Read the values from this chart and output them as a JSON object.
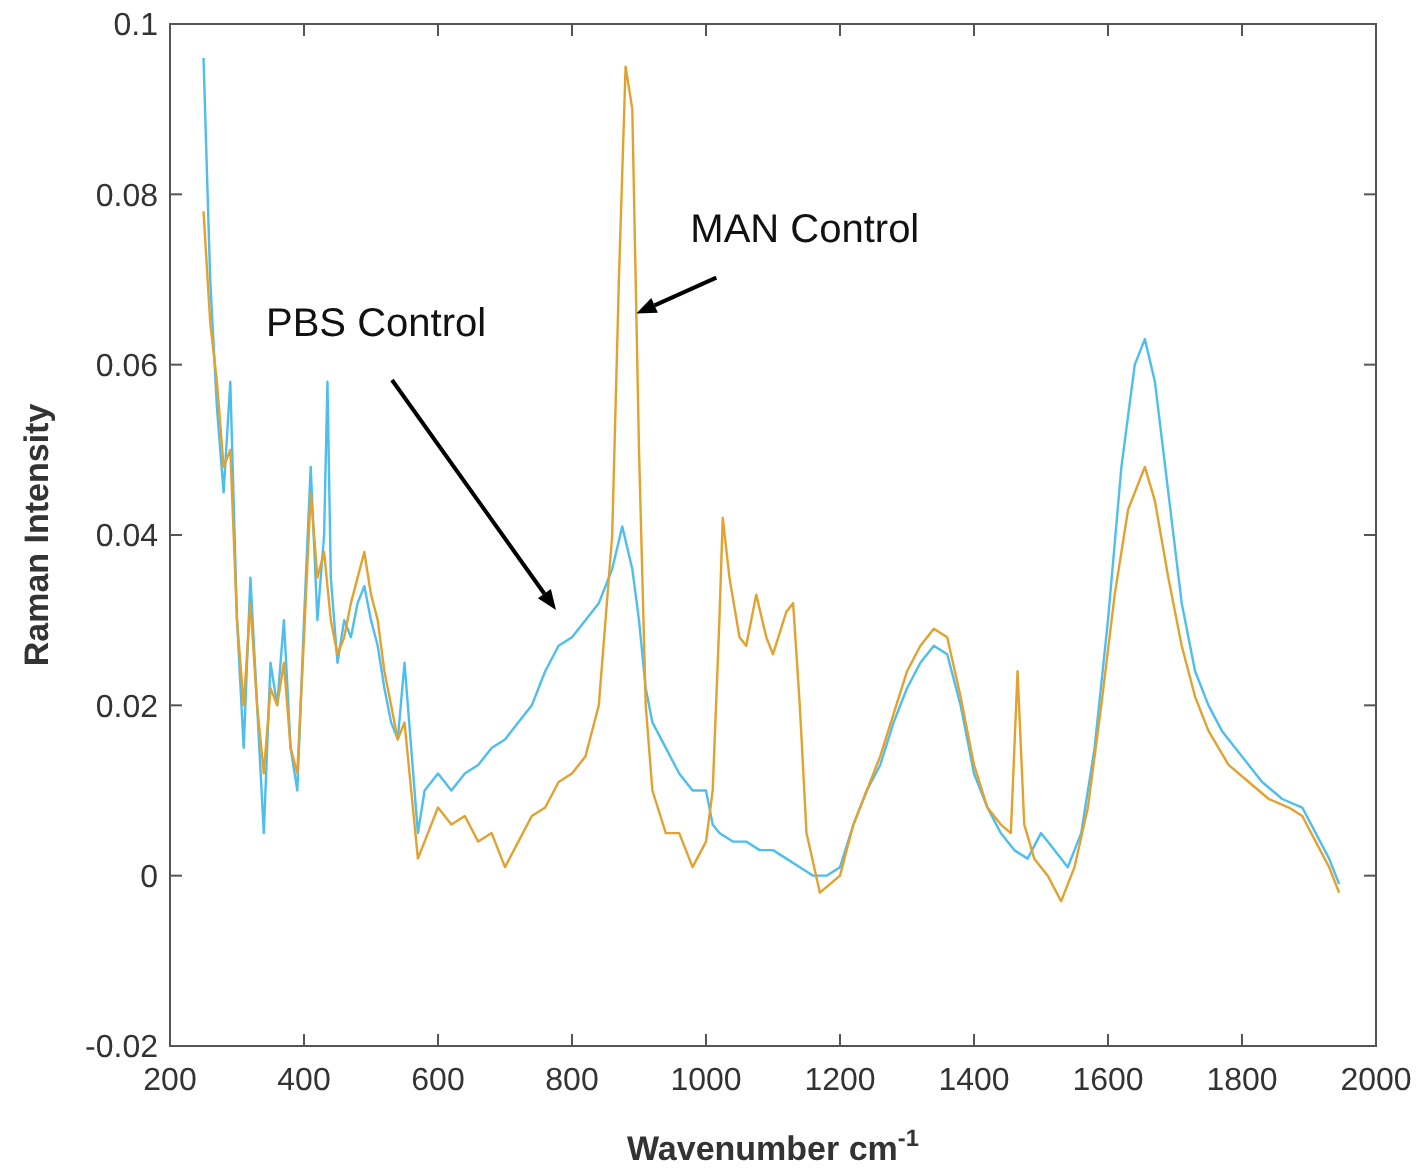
{
  "chart_data": {
    "type": "line",
    "xlabel": "Wavenumber cm$^{-1}$",
    "ylabel": "Raman Intensity",
    "xlim": [
      200,
      2000
    ],
    "xticks": [
      200,
      400,
      600,
      800,
      1000,
      1200,
      1400,
      1600,
      1800,
      2000
    ],
    "ylim": [
      -0.02,
      0.1
    ],
    "yticks": [
      -0.02,
      0,
      0.02,
      0.04,
      0.06,
      0.08,
      0.1
    ],
    "grid": false,
    "marker": "none",
    "line_style": "solid",
    "annotations": [
      "PBS Control",
      {
        "text": "MAN Control",
        "x": 896,
        "y": 0.066
      }
    ],
    "series": [
      {
        "color": "#4dbeee",
        "x": [
          250,
          260,
          270,
          280,
          290,
          300,
          310,
          320,
          330,
          340,
          350,
          360,
          370,
          380,
          390,
          400,
          410,
          420,
          430,
          435,
          440,
          450,
          460,
          470,
          480,
          490,
          500,
          510,
          520,
          530,
          540,
          550,
          560,
          570,
          580,
          600,
          620,
          640,
          660,
          680,
          700,
          720,
          740,
          760,
          780,
          800,
          820,
          840,
          860,
          875,
          890,
          900,
          910,
          920,
          940,
          960,
          980,
          1000,
          1010,
          1020,
          1040,
          1060,
          1080,
          1100,
          1120,
          1140,
          1160,
          1180,
          1200,
          1220,
          1240,
          1260,
          1280,
          1300,
          1320,
          1340,
          1360,
          1380,
          1400,
          1420,
          1440,
          1460,
          1480,
          1500,
          1520,
          1540,
          1560,
          1580,
          1600,
          1620,
          1640,
          1655,
          1670,
          1690,
          1710,
          1730,
          1750,
          1770,
          1800,
          1830,
          1860,
          1890,
          1910,
          1930,
          1945
        ],
        "values": [
          0.096,
          0.07,
          0.055,
          0.045,
          0.058,
          0.03,
          0.015,
          0.035,
          0.02,
          0.005,
          0.025,
          0.02,
          0.03,
          0.015,
          0.01,
          0.03,
          0.048,
          0.03,
          0.04,
          0.058,
          0.035,
          0.025,
          0.03,
          0.028,
          0.032,
          0.034,
          0.03,
          0.027,
          0.022,
          0.018,
          0.016,
          0.025,
          0.015,
          0.005,
          0.01,
          0.012,
          0.01,
          0.012,
          0.013,
          0.015,
          0.016,
          0.018,
          0.02,
          0.024,
          0.027,
          0.028,
          0.03,
          0.032,
          0.036,
          0.041,
          0.036,
          0.03,
          0.022,
          0.018,
          0.015,
          0.012,
          0.01,
          0.01,
          0.006,
          0.005,
          0.004,
          0.004,
          0.003,
          0.003,
          0.002,
          0.001,
          0.0,
          0.0,
          0.001,
          0.006,
          0.01,
          0.013,
          0.018,
          0.022,
          0.025,
          0.027,
          0.026,
          0.02,
          0.012,
          0.008,
          0.005,
          0.003,
          0.002,
          0.005,
          0.003,
          0.001,
          0.005,
          0.015,
          0.03,
          0.048,
          0.06,
          0.063,
          0.058,
          0.045,
          0.032,
          0.024,
          0.02,
          0.017,
          0.014,
          0.011,
          0.009,
          0.008,
          0.005,
          0.002,
          -0.001
        ]
      },
      {
        "color": "#e3a12f",
        "x": [
          250,
          260,
          270,
          280,
          290,
          300,
          310,
          320,
          330,
          340,
          350,
          360,
          370,
          380,
          390,
          400,
          410,
          420,
          430,
          440,
          450,
          460,
          470,
          480,
          490,
          500,
          510,
          520,
          530,
          540,
          550,
          560,
          570,
          600,
          620,
          640,
          660,
          680,
          700,
          720,
          740,
          760,
          780,
          800,
          820,
          840,
          860,
          870,
          880,
          890,
          900,
          910,
          920,
          940,
          960,
          980,
          1000,
          1010,
          1020,
          1025,
          1035,
          1050,
          1060,
          1075,
          1090,
          1100,
          1120,
          1130,
          1140,
          1150,
          1170,
          1200,
          1220,
          1240,
          1260,
          1280,
          1300,
          1320,
          1340,
          1360,
          1380,
          1400,
          1420,
          1440,
          1455,
          1465,
          1475,
          1490,
          1510,
          1530,
          1550,
          1570,
          1590,
          1610,
          1630,
          1655,
          1670,
          1690,
          1710,
          1730,
          1750,
          1780,
          1810,
          1840,
          1870,
          1890,
          1910,
          1930,
          1945
        ],
        "values": [
          0.078,
          0.065,
          0.058,
          0.048,
          0.05,
          0.03,
          0.02,
          0.032,
          0.02,
          0.012,
          0.022,
          0.02,
          0.025,
          0.015,
          0.012,
          0.028,
          0.045,
          0.035,
          0.038,
          0.03,
          0.026,
          0.028,
          0.032,
          0.035,
          0.038,
          0.033,
          0.03,
          0.024,
          0.02,
          0.016,
          0.018,
          0.01,
          0.002,
          0.008,
          0.006,
          0.007,
          0.004,
          0.005,
          0.001,
          0.004,
          0.007,
          0.008,
          0.011,
          0.012,
          0.014,
          0.02,
          0.04,
          0.07,
          0.095,
          0.09,
          0.05,
          0.02,
          0.01,
          0.005,
          0.005,
          0.001,
          0.004,
          0.01,
          0.03,
          0.042,
          0.035,
          0.028,
          0.027,
          0.033,
          0.028,
          0.026,
          0.031,
          0.032,
          0.02,
          0.005,
          -0.002,
          0.0,
          0.006,
          0.01,
          0.014,
          0.019,
          0.024,
          0.027,
          0.029,
          0.028,
          0.021,
          0.013,
          0.008,
          0.006,
          0.005,
          0.024,
          0.006,
          0.002,
          0.0,
          -0.003,
          0.001,
          0.008,
          0.02,
          0.033,
          0.043,
          0.048,
          0.044,
          0.035,
          0.027,
          0.021,
          0.017,
          0.013,
          0.011,
          0.009,
          0.008,
          0.007,
          0.004,
          0.001,
          -0.002
        ]
      }
    ]
  }
}
